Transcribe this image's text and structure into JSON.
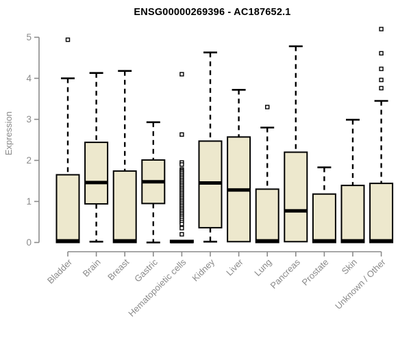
{
  "chart_data": {
    "type": "boxplot",
    "title": "ENSG00000269396 - AC187652.1",
    "xlabel": "",
    "ylabel": "Expression",
    "ylim": [
      0,
      5.25
    ],
    "yticks": [
      0,
      1,
      2,
      3,
      4,
      5
    ],
    "grid": false,
    "legend": "none",
    "categories": [
      "Bladder",
      "Brain",
      "Breast",
      "Gastric",
      "Hematopoietic cells",
      "Kidney",
      "Liver",
      "Lung",
      "Pancreas",
      "Prostate",
      "Skin",
      "Unknown / Other"
    ],
    "series": [
      {
        "name": "Bladder",
        "whisker_low": 0,
        "q1": 0,
        "median": 0.04,
        "q3": 1.65,
        "whisker_high": 4.0,
        "outliers": [
          4.94
        ]
      },
      {
        "name": "Brain",
        "whisker_low": 0.02,
        "q1": 0.94,
        "median": 1.46,
        "q3": 2.44,
        "whisker_high": 4.13,
        "outliers": []
      },
      {
        "name": "Breast",
        "whisker_low": 0,
        "q1": 0,
        "median": 0.04,
        "q3": 1.74,
        "whisker_high": 4.18,
        "outliers": []
      },
      {
        "name": "Gastric",
        "whisker_low": 0,
        "q1": 0.95,
        "median": 1.48,
        "q3": 2.01,
        "whisker_high": 2.93,
        "outliers": []
      },
      {
        "name": "Hematopoietic cells",
        "whisker_low": 0,
        "q1": 0,
        "median": 0.02,
        "q3": 0.05,
        "whisker_high": 0.05,
        "outliers": [
          4.1,
          2.63,
          1.95,
          1.9,
          1.78,
          1.75,
          1.72,
          1.68,
          1.64,
          1.6,
          1.56,
          1.52,
          1.48,
          1.44,
          1.4,
          1.36,
          1.32,
          1.28,
          1.24,
          1.2,
          1.16,
          1.12,
          1.08,
          1.04,
          1.0,
          0.96,
          0.92,
          0.88,
          0.84,
          0.8,
          0.76,
          0.72,
          0.68,
          0.64,
          0.6,
          0.55,
          0.5,
          0.45,
          0.35,
          0.2
        ]
      },
      {
        "name": "Kidney",
        "whisker_low": 0.02,
        "q1": 0.36,
        "median": 1.45,
        "q3": 2.47,
        "whisker_high": 4.63,
        "outliers": []
      },
      {
        "name": "Liver",
        "whisker_low": 0.02,
        "q1": 0.02,
        "median": 1.28,
        "q3": 2.57,
        "whisker_high": 3.72,
        "outliers": []
      },
      {
        "name": "Lung",
        "whisker_low": 0,
        "q1": 0,
        "median": 0.04,
        "q3": 1.3,
        "whisker_high": 2.8,
        "outliers": [
          3.3
        ]
      },
      {
        "name": "Pancreas",
        "whisker_low": 0.02,
        "q1": 0.02,
        "median": 0.77,
        "q3": 2.2,
        "whisker_high": 4.78,
        "outliers": []
      },
      {
        "name": "Prostate",
        "whisker_low": 0,
        "q1": 0,
        "median": 0.04,
        "q3": 1.18,
        "whisker_high": 1.83,
        "outliers": []
      },
      {
        "name": "Skin",
        "whisker_low": 0,
        "q1": 0,
        "median": 0.04,
        "q3": 1.39,
        "whisker_high": 2.99,
        "outliers": []
      },
      {
        "name": "Unknown / Other",
        "whisker_low": 0,
        "q1": 0,
        "median": 0.04,
        "q3": 1.44,
        "whisker_high": 3.45,
        "outliers": [
          3.76,
          3.96,
          4.23,
          4.61,
          5.2
        ]
      }
    ]
  },
  "colors": {
    "box_fill": "#EDE8CD",
    "box_border": "#000000",
    "median": "#000000",
    "whisker": "#000000",
    "outlier_stroke": "#000000",
    "outlier_fill": "#FFFFFF",
    "axis": "#8a8a8a",
    "tick_label": "#8a8a8a",
    "title_color": "#000000",
    "background": "#FFFFFF"
  }
}
